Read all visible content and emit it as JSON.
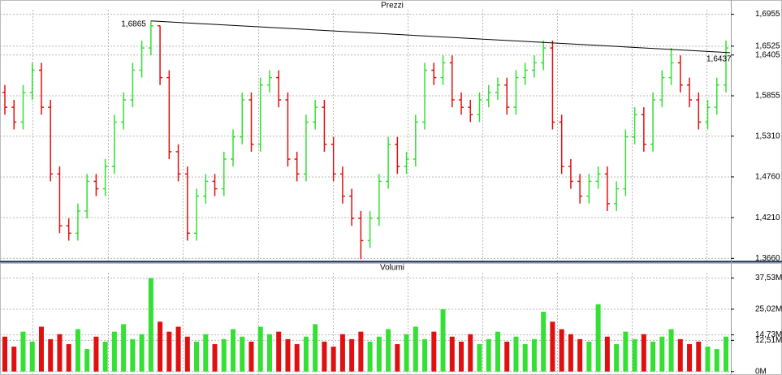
{
  "chart_data": [
    {
      "type": "ohlc",
      "title": "Prezzi",
      "up_color": "#33e033",
      "down_color": "#e01010",
      "grid": true,
      "ylim": [
        1.362,
        1.706
      ],
      "yticks": [
        {
          "value": 1.6955,
          "label": "1,6955"
        },
        {
          "value": 1.6525,
          "label": "1,6525"
        },
        {
          "value": 1.6405,
          "label": "1,6405"
        },
        {
          "value": 1.5855,
          "label": "1,5855"
        },
        {
          "value": 1.531,
          "label": "1,5310"
        },
        {
          "value": 1.476,
          "label": "1,4760"
        },
        {
          "value": 1.421,
          "label": "1,4210"
        },
        {
          "value": 1.366,
          "label": "1,3660"
        }
      ],
      "open": [
        1.59,
        1.57,
        1.55,
        1.59,
        1.62,
        1.57,
        1.48,
        1.41,
        1.4,
        1.43,
        1.47,
        1.46,
        1.49,
        1.55,
        1.58,
        1.62,
        1.65,
        1.68,
        1.61,
        1.51,
        1.48,
        1.4,
        1.45,
        1.47,
        1.46,
        1.5,
        1.53,
        1.58,
        1.52,
        1.6,
        1.61,
        1.58,
        1.5,
        1.48,
        1.55,
        1.57,
        1.52,
        1.48,
        1.45,
        1.42,
        1.39,
        1.42,
        1.47,
        1.52,
        1.49,
        1.5,
        1.55,
        1.62,
        1.61,
        1.63,
        1.58,
        1.57,
        1.56,
        1.58,
        1.59,
        1.6,
        1.57,
        1.61,
        1.62,
        1.63,
        1.65,
        1.55,
        1.49,
        1.47,
        1.45,
        1.47,
        1.48,
        1.44,
        1.46,
        1.53,
        1.56,
        1.52,
        1.58,
        1.61,
        1.63,
        1.6,
        1.58,
        1.55,
        1.57,
        1.6
      ],
      "high": [
        1.6,
        1.58,
        1.6,
        1.63,
        1.63,
        1.58,
        1.49,
        1.42,
        1.44,
        1.48,
        1.48,
        1.5,
        1.56,
        1.59,
        1.63,
        1.66,
        1.6865,
        1.68,
        1.62,
        1.52,
        1.49,
        1.46,
        1.48,
        1.48,
        1.51,
        1.54,
        1.59,
        1.59,
        1.61,
        1.62,
        1.62,
        1.59,
        1.51,
        1.56,
        1.58,
        1.58,
        1.53,
        1.49,
        1.46,
        1.43,
        1.43,
        1.48,
        1.53,
        1.53,
        1.51,
        1.56,
        1.63,
        1.63,
        1.64,
        1.64,
        1.59,
        1.58,
        1.59,
        1.6,
        1.61,
        1.61,
        1.62,
        1.63,
        1.64,
        1.66,
        1.66,
        1.56,
        1.5,
        1.48,
        1.48,
        1.49,
        1.49,
        1.47,
        1.54,
        1.57,
        1.57,
        1.59,
        1.62,
        1.65,
        1.64,
        1.61,
        1.59,
        1.58,
        1.61,
        1.66
      ],
      "low": [
        1.56,
        1.54,
        1.54,
        1.58,
        1.56,
        1.47,
        1.4,
        1.39,
        1.39,
        1.42,
        1.45,
        1.45,
        1.48,
        1.54,
        1.57,
        1.61,
        1.64,
        1.6,
        1.5,
        1.47,
        1.39,
        1.39,
        1.44,
        1.45,
        1.45,
        1.49,
        1.52,
        1.51,
        1.51,
        1.59,
        1.57,
        1.49,
        1.47,
        1.47,
        1.54,
        1.51,
        1.47,
        1.44,
        1.41,
        1.365,
        1.38,
        1.41,
        1.46,
        1.48,
        1.48,
        1.49,
        1.54,
        1.6,
        1.6,
        1.57,
        1.56,
        1.55,
        1.55,
        1.57,
        1.58,
        1.56,
        1.56,
        1.6,
        1.61,
        1.62,
        1.54,
        1.48,
        1.46,
        1.44,
        1.44,
        1.46,
        1.43,
        1.43,
        1.45,
        1.52,
        1.51,
        1.51,
        1.57,
        1.6,
        1.59,
        1.57,
        1.54,
        1.54,
        1.56,
        1.59
      ],
      "close": [
        1.57,
        1.55,
        1.59,
        1.62,
        1.57,
        1.48,
        1.41,
        1.4,
        1.43,
        1.47,
        1.46,
        1.49,
        1.55,
        1.58,
        1.62,
        1.65,
        1.68,
        1.61,
        1.51,
        1.48,
        1.4,
        1.45,
        1.47,
        1.46,
        1.5,
        1.53,
        1.58,
        1.52,
        1.6,
        1.61,
        1.58,
        1.5,
        1.48,
        1.55,
        1.57,
        1.52,
        1.48,
        1.45,
        1.42,
        1.39,
        1.42,
        1.47,
        1.52,
        1.49,
        1.5,
        1.55,
        1.62,
        1.61,
        1.63,
        1.58,
        1.57,
        1.56,
        1.58,
        1.59,
        1.6,
        1.57,
        1.61,
        1.62,
        1.63,
        1.65,
        1.55,
        1.49,
        1.47,
        1.45,
        1.47,
        1.48,
        1.44,
        1.46,
        1.53,
        1.56,
        1.52,
        1.58,
        1.61,
        1.63,
        1.6,
        1.58,
        1.55,
        1.57,
        1.6,
        1.65
      ],
      "trendline": {
        "x": [
          16,
          79
        ],
        "values": [
          1.6865,
          1.6437
        ],
        "value_labels": [
          "1,6865",
          "1,6437"
        ]
      }
    },
    {
      "type": "bar",
      "title": "Volumi",
      "grid": true,
      "ylim": [
        -1.4,
        40
      ],
      "yticks": [
        {
          "value": 37.53,
          "label": "37,53M"
        },
        {
          "value": 25.02,
          "label": "25,02M"
        },
        {
          "value": 14.73,
          "label": "14,73M"
        },
        {
          "value": 12.51,
          "label": "12,51M"
        },
        {
          "value": 0,
          "label": "0M"
        }
      ],
      "values": [
        14,
        10,
        16,
        12,
        18,
        13,
        15,
        11,
        17,
        9,
        14,
        12,
        16,
        19,
        13,
        15,
        37.53,
        20,
        16,
        18,
        14,
        12,
        15,
        11,
        13,
        17,
        14,
        12,
        18,
        15,
        16,
        13,
        11,
        14,
        19,
        12,
        10,
        15,
        13,
        16,
        12,
        14,
        17,
        11,
        15,
        18,
        13,
        16,
        25,
        14,
        12,
        15,
        11,
        13,
        16,
        12,
        14,
        11,
        13,
        24,
        20,
        17,
        15,
        13,
        12,
        27,
        14,
        11,
        16,
        13,
        15,
        12,
        14,
        17,
        13,
        11,
        12,
        10,
        9,
        14
      ]
    }
  ]
}
